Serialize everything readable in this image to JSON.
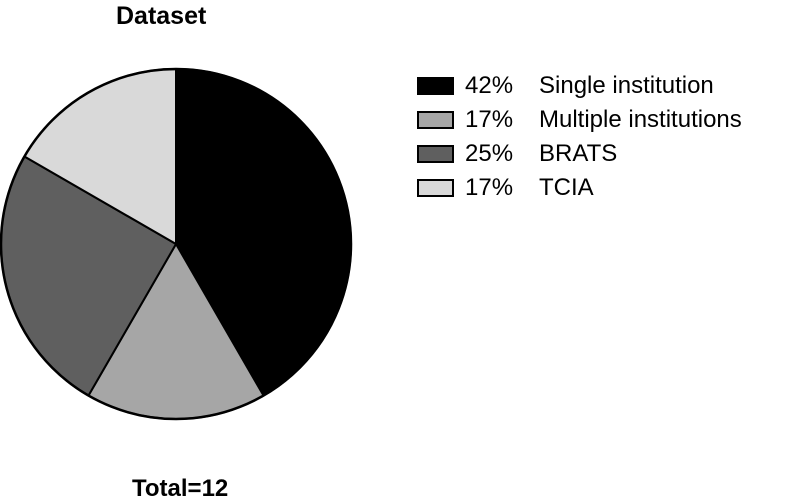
{
  "chart_data": {
    "type": "pie",
    "title": "Dataset",
    "slices": [
      {
        "label": "Single institution",
        "percent_label": "42%",
        "value": 5,
        "color": "#000000"
      },
      {
        "label": "Multiple institutions",
        "percent_label": "17%",
        "value": 2,
        "color": "#a6a6a6"
      },
      {
        "label": "BRATS",
        "percent_label": "25%",
        "value": 3,
        "color": "#5f5f5f"
      },
      {
        "label": "TCIA",
        "percent_label": "17%",
        "value": 2,
        "color": "#d9d9d9"
      }
    ],
    "total_label": "Total=12",
    "legend_position": "right"
  }
}
